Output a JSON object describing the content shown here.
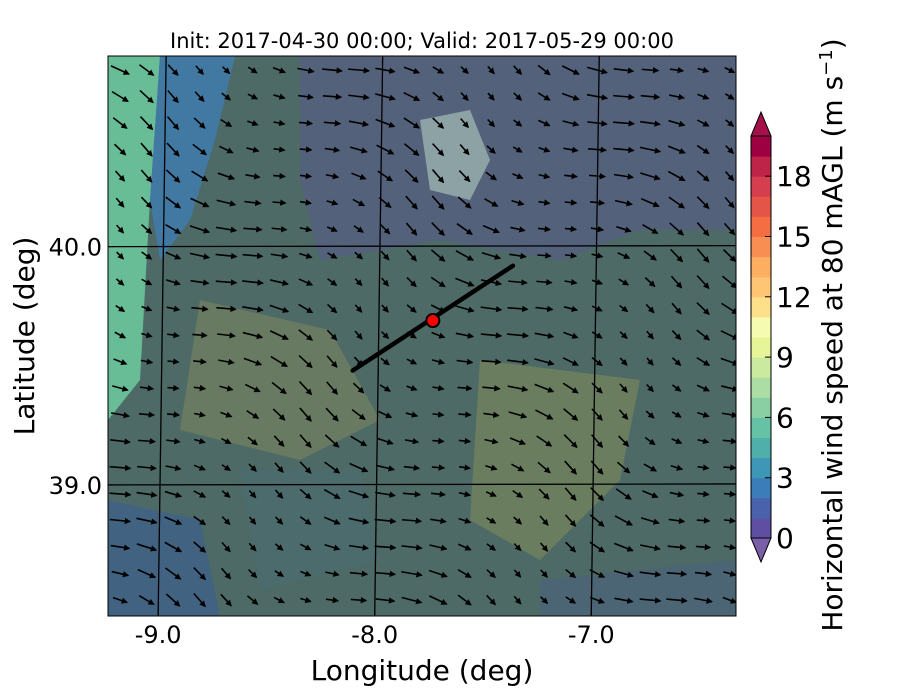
{
  "chart_data": {
    "type": "heatmap",
    "title": "Init: 2017-04-30 00:00; Valid: 2017-05-29 00:00",
    "xlabel": "Longitude (deg)",
    "ylabel": "Latitude (deg)",
    "xlim": [
      -9.25,
      -6.35
    ],
    "ylim": [
      38.45,
      40.8
    ],
    "x_ticks": [
      -9.0,
      -8.0,
      -7.0
    ],
    "x_tick_labels": [
      "-9.0",
      "-8.0",
      "-7.0"
    ],
    "y_ticks": [
      39.0,
      40.0
    ],
    "y_tick_labels": [
      "39.0",
      "40.0"
    ],
    "gridlines": {
      "meridians": [
        -9.0,
        -8.0,
        -7.0,
        -6.0
      ],
      "parallels": [
        39.0,
        40.0
      ],
      "shown": true
    },
    "colorbar": {
      "label": "Horizontal wind speed at 80 mAGL (m s",
      "label_unit_exponent": "−1",
      "label_close": ")",
      "min": 0,
      "max": 20,
      "step": 1,
      "ticks": [
        0,
        3,
        6,
        9,
        12,
        15,
        18
      ],
      "extend": "both",
      "colormap": "Spectral_r",
      "under_color": "#7b5ea8",
      "over_color": "#a3104a"
    },
    "transect_line": {
      "start": [
        -8.12,
        39.48
      ],
      "end": [
        -7.38,
        39.92
      ],
      "color": "#000000"
    },
    "marker": {
      "lon": -7.75,
      "lat": 39.69,
      "fill_color": "#ff0000",
      "edge_color": "#000000"
    },
    "wind_field": {
      "description_of_flow": "northwesterly to westerly surface wind vectors",
      "prevailing_direction_deg_from": 315
    }
  }
}
